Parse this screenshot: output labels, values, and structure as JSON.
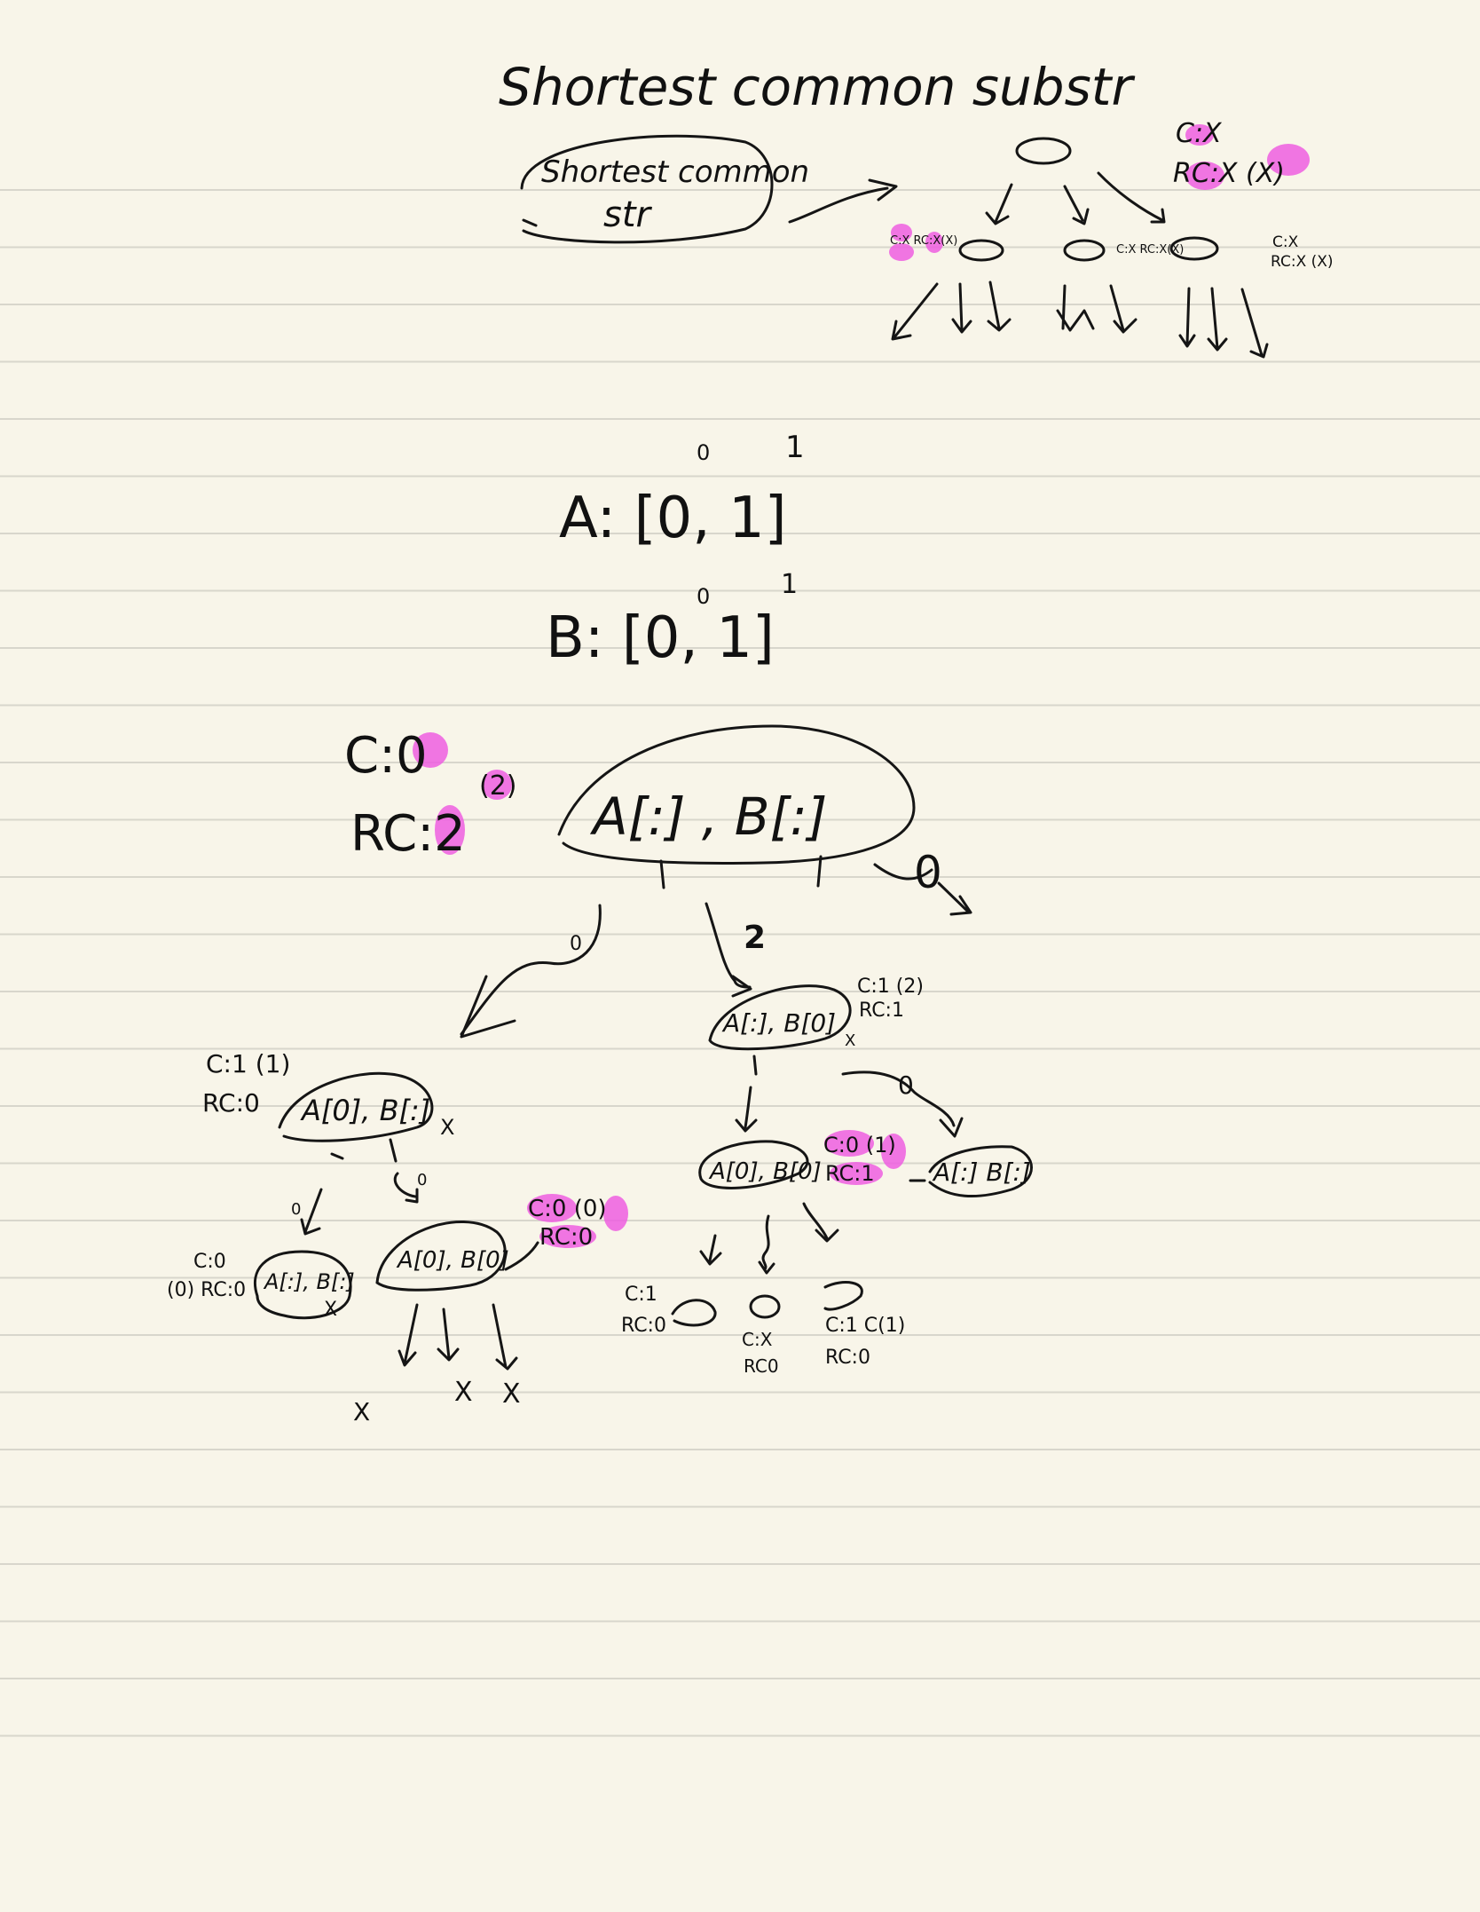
{
  "note": {
    "title": "Shortest common substr",
    "bubble_top": [
      "Shortest common",
      "str"
    ],
    "top_tree": {
      "root_label": [
        "C:X",
        "RC:X (X)"
      ],
      "left_label": "C:X RC:X(X)",
      "mid_label": "C:X RC:X(X)",
      "right_label": [
        "C:X",
        "RC:X (X)"
      ]
    },
    "arrays": {
      "a_indices": [
        "0",
        "1"
      ],
      "a_line": "A: [0, 1]",
      "b_indices": [
        "0",
        "1"
      ],
      "b_line": "B: [0, 1]"
    },
    "main_tree": {
      "root_node": "A[:] , B[:]",
      "root_c": "C:0",
      "root_rc": "RC:2",
      "root_paren": "(2)",
      "branch_left_digit": "0",
      "branch_mid_digit": "2",
      "branch_right_digit": "0",
      "left_child_node": "A[0], B[:]",
      "left_child_label": [
        "C:1 (1)",
        "RC:0"
      ],
      "right_child_node": "A[:], B[0]",
      "right_child_label": [
        "C:1 (2)",
        "RC:1"
      ],
      "ll_node": "A[:], B[:]",
      "ll_label": [
        "C:0",
        "(0) RC:0"
      ],
      "lm_node": "A[0], B[0]",
      "lm_label": [
        "C:0 (0)",
        "RC:0"
      ],
      "rl_node": "A[0], B[0]",
      "rl_label": [
        "C:0 (1)",
        "RC:1"
      ],
      "rr_node": "A[:] B[:]",
      "leaf1_label": [
        "C:1",
        "RC:0"
      ],
      "leaf2_label": [
        "C:X",
        "RC0"
      ],
      "leaf3_label": [
        "C:1 C(1)",
        "RC:0"
      ],
      "mark_x": "X"
    }
  },
  "colors": {
    "paper": "#f8f5e9",
    "rule": "#d8d6cc",
    "ink": "#151515",
    "highlight": "#ee5ee0"
  }
}
